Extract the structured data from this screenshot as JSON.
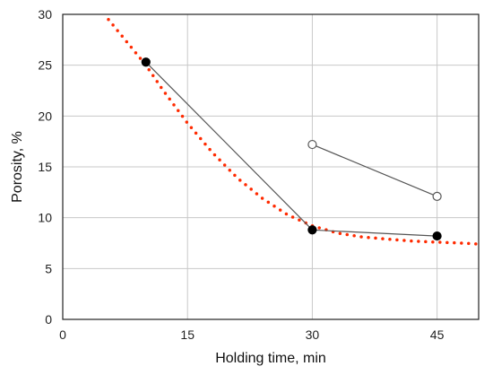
{
  "chart_data": {
    "type": "line",
    "xlabel": "Holding time, min",
    "ylabel": "Porosity, %",
    "xlim": [
      0,
      50
    ],
    "ylim": [
      0,
      30
    ],
    "x_ticks": [
      0,
      15,
      30,
      45
    ],
    "y_ticks": [
      0,
      5,
      10,
      15,
      20,
      25,
      30
    ],
    "grid": true,
    "series": [
      {
        "marker": "filled-circle",
        "x": [
          10,
          30,
          45
        ],
        "y": [
          25.3,
          8.8,
          8.2
        ]
      },
      {
        "marker": "open-circle",
        "x": [
          30,
          45
        ],
        "y": [
          17.2,
          12.1
        ]
      }
    ],
    "trendline": {
      "style": "dotted",
      "color": "#ff2a00",
      "x": [
        5.5,
        8,
        10,
        12,
        15,
        18,
        21,
        24,
        27,
        30,
        33,
        36,
        39,
        42,
        45,
        48,
        50
      ],
      "y": [
        29.5,
        27.0,
        25.0,
        22.6,
        19.3,
        16.4,
        13.9,
        11.9,
        10.3,
        9.2,
        8.5,
        8.1,
        7.9,
        7.7,
        7.6,
        7.5,
        7.4
      ]
    },
    "colors": {
      "series_line": "#555555",
      "marker_fill": "#000000",
      "grid": "#c8c8c8",
      "frame": "#222222"
    }
  }
}
